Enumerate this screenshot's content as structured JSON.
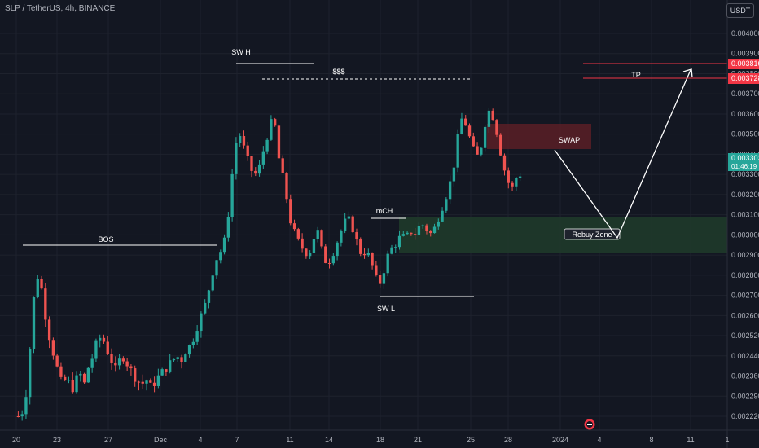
{
  "header": {
    "symbol": "SLP / TetherUS, 4h, BINANCE"
  },
  "currency_button": "USDT",
  "colors": {
    "background": "#131722",
    "grid": "#1e222d",
    "up": "#26a69a",
    "down": "#ef5350",
    "annotation": "#ffffff",
    "tp_line": "#f23645",
    "swap_zone": "#5b1f26",
    "rebuy_zone": "#1f3a2a"
  },
  "chart_data": {
    "type": "candlestick",
    "y_axis": {
      "ticks": [
        "0.004000",
        "0.003900",
        "0.003800",
        "0.003700",
        "0.003600",
        "0.003500",
        "0.003400",
        "0.003300",
        "0.003200",
        "0.003100",
        "0.003000",
        "0.002900",
        "0.002800",
        "0.002700",
        "0.002600",
        "0.002520",
        "0.002440",
        "0.002360",
        "0.002290",
        "0.002220"
      ]
    },
    "x_axis": {
      "ticks": [
        "20",
        "23",
        "27",
        "Dec",
        "4",
        "7",
        "11",
        "14",
        "18",
        "21",
        "25",
        "28",
        "2024",
        "4",
        "8",
        "11",
        "1"
      ]
    },
    "price_labels": [
      {
        "value": "0.003816",
        "kind": "tp_upper"
      },
      {
        "value": "0.003728",
        "kind": "tp_lower"
      },
      {
        "value": "0.003302",
        "kind": "current",
        "sub": "01:46:19"
      }
    ],
    "annotations": {
      "bos": "BOS",
      "sw_h": "SW H",
      "sss": "$$$",
      "mch": "mCH",
      "sw_l": "SW L",
      "swap": "SWAP",
      "rebuy": "Rebuy Zone",
      "tp": "TP"
    },
    "price_path": [
      0.00222,
      0.00224,
      0.00232,
      0.00255,
      0.0028,
      0.00278,
      0.00262,
      0.00252,
      0.00245,
      0.00238,
      0.00232,
      0.00236,
      0.00231,
      0.00234,
      0.00237,
      0.00233,
      0.0024,
      0.00244,
      0.0025,
      0.00252,
      0.00247,
      0.00243,
      0.00238,
      0.00242,
      0.00244,
      0.0024,
      0.00237,
      0.00235,
      0.00233,
      0.00235,
      0.00232,
      0.00234,
      0.00236,
      0.00238,
      0.0024,
      0.00242,
      0.00244,
      0.00242,
      0.00246,
      0.00248,
      0.00252,
      0.00258,
      0.00262,
      0.0027,
      0.0028,
      0.00288,
      0.00292,
      0.00298,
      0.00315,
      0.0034,
      0.00352,
      0.00345,
      0.00338,
      0.00332,
      0.0033,
      0.00335,
      0.00345,
      0.00352,
      0.0036,
      0.0034,
      0.0033,
      0.00318,
      0.00305,
      0.003,
      0.00295,
      0.00292,
      0.0029,
      0.00298,
      0.00302,
      0.00292,
      0.00286,
      0.00288,
      0.00294,
      0.003,
      0.00306,
      0.00308,
      0.00303,
      0.00296,
      0.0029,
      0.00292,
      0.00288,
      0.0028,
      0.00275,
      0.00282,
      0.0029,
      0.00294,
      0.00296,
      0.003,
      0.00298,
      0.00302,
      0.003,
      0.00304,
      0.00305,
      0.00302,
      0.003,
      0.00306,
      0.00312,
      0.00318,
      0.00325,
      0.00335,
      0.0035,
      0.0036,
      0.00352,
      0.00345,
      0.00338,
      0.00342,
      0.00355,
      0.00362,
      0.00358,
      0.00348,
      0.00336,
      0.00328,
      0.00322,
      0.00328,
      0.0033
    ]
  }
}
